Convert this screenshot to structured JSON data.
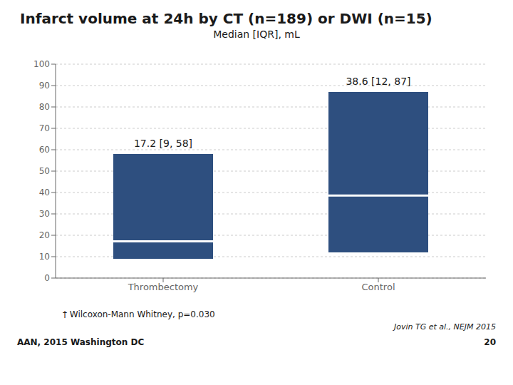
{
  "chart_data": {
    "type": "bar",
    "title": "Infarct volume at 24h by CT (n=189) or DWI (n=15)",
    "subtitle": "Median [IQR], mL",
    "categories": [
      "Thrombectomy",
      "Control"
    ],
    "bar_bottom": [
      9,
      12
    ],
    "bar_top": [
      58,
      87
    ],
    "median": [
      17.2,
      38.6
    ],
    "color": "#2E4F7F",
    "ylim": [
      0,
      100
    ],
    "yticks": [
      0,
      10,
      20,
      30,
      40,
      50,
      60,
      70,
      80,
      90,
      100
    ],
    "grid": true,
    "annotations": [
      "17.2 [9, 58]",
      "38.6 [12, 87]"
    ],
    "footnote": "† Wilcoxon-Mann Whitney, p=0.030",
    "source": "Jovin TG et al., NEJM 2015",
    "footer": [
      "AAN, 2015 Washington DC",
      "20"
    ]
  }
}
